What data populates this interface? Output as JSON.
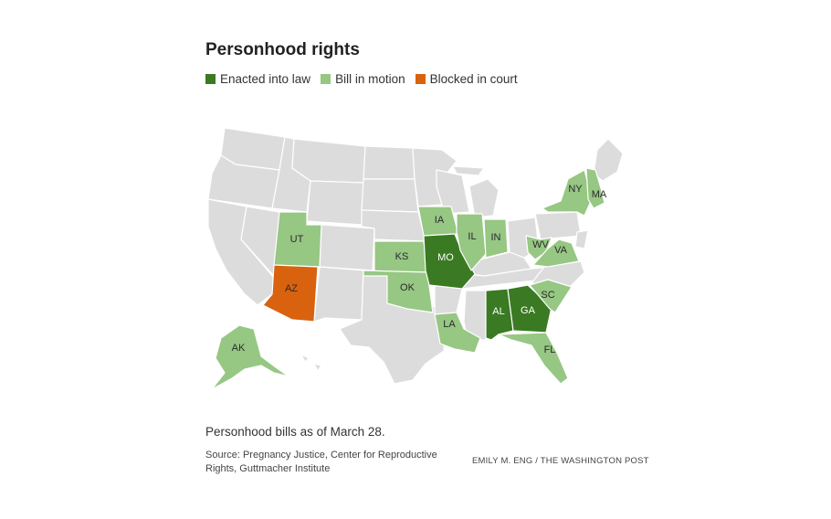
{
  "title": "Personhood rights",
  "legend": [
    {
      "label": "Enacted into law",
      "color": "#3a7a23"
    },
    {
      "label": "Bill in motion",
      "color": "#96c783"
    },
    {
      "label": "Blocked in court",
      "color": "#d9620f"
    }
  ],
  "base_color": "#dcdcdc",
  "states": [
    {
      "abbr": "AK",
      "status": "Bill in motion"
    },
    {
      "abbr": "UT",
      "status": "Bill in motion"
    },
    {
      "abbr": "AZ",
      "status": "Blocked in court"
    },
    {
      "abbr": "KS",
      "status": "Bill in motion"
    },
    {
      "abbr": "OK",
      "status": "Bill in motion"
    },
    {
      "abbr": "IA",
      "status": "Bill in motion"
    },
    {
      "abbr": "MO",
      "status": "Enacted into law"
    },
    {
      "abbr": "IL",
      "status": "Bill in motion"
    },
    {
      "abbr": "IN",
      "status": "Bill in motion"
    },
    {
      "abbr": "LA",
      "status": "Bill in motion"
    },
    {
      "abbr": "AL",
      "status": "Enacted into law"
    },
    {
      "abbr": "GA",
      "status": "Enacted into law"
    },
    {
      "abbr": "SC",
      "status": "Bill in motion"
    },
    {
      "abbr": "FL",
      "status": "Bill in motion"
    },
    {
      "abbr": "WV",
      "status": "Bill in motion"
    },
    {
      "abbr": "VA",
      "status": "Bill in motion"
    },
    {
      "abbr": "NY",
      "status": "Bill in motion"
    },
    {
      "abbr": "MA",
      "status": "Bill in motion"
    }
  ],
  "note": "Personhood bills as of March 28.",
  "source": "Source: Pregnancy Justice, Center for Reproductive Rights, Guttmacher Institute",
  "credit": "EMILY M. ENG / THE WASHINGTON POST"
}
